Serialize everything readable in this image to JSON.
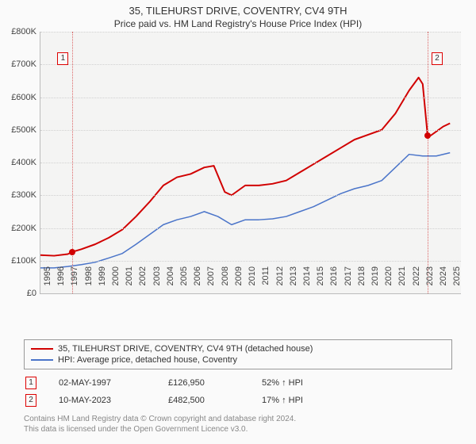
{
  "title": "35, TILEHURST DRIVE, COVENTRY, CV4 9TH",
  "subtitle": "Price paid vs. HM Land Registry's House Price Index (HPI)",
  "chart": {
    "type": "line",
    "background_color": "#f4f4f3",
    "grid_color": "#d0d0d0",
    "axis_color": "#bbbbbb",
    "xlim": [
      1995,
      2025.8
    ],
    "ylim": [
      0,
      800000
    ],
    "ytick_step": 100000,
    "yticks": [
      "£0",
      "£100K",
      "£200K",
      "£300K",
      "£400K",
      "£500K",
      "£600K",
      "£700K",
      "£800K"
    ],
    "xticks": [
      "1995",
      "1996",
      "1997",
      "1998",
      "1999",
      "2000",
      "2001",
      "2002",
      "2003",
      "2004",
      "2005",
      "2006",
      "2007",
      "2008",
      "2009",
      "2010",
      "2011",
      "2012",
      "2013",
      "2014",
      "2015",
      "2016",
      "2017",
      "2018",
      "2019",
      "2020",
      "2021",
      "2022",
      "2023",
      "2024",
      "2025"
    ],
    "label_fontsize": 11,
    "series": [
      {
        "name": "35, TILEHURST DRIVE, COVENTRY, CV4 9TH (detached house)",
        "color": "#d10000",
        "line_width": 2,
        "data": [
          [
            1995,
            117000
          ],
          [
            1996,
            115000
          ],
          [
            1997,
            120000
          ],
          [
            1997.35,
            126950
          ],
          [
            1998,
            135000
          ],
          [
            1999,
            150000
          ],
          [
            2000,
            170000
          ],
          [
            2001,
            195000
          ],
          [
            2002,
            235000
          ],
          [
            2003,
            280000
          ],
          [
            2004,
            330000
          ],
          [
            2005,
            355000
          ],
          [
            2006,
            365000
          ],
          [
            2007,
            385000
          ],
          [
            2007.7,
            390000
          ],
          [
            2008,
            360000
          ],
          [
            2008.5,
            310000
          ],
          [
            2009,
            300000
          ],
          [
            2010,
            330000
          ],
          [
            2011,
            330000
          ],
          [
            2012,
            335000
          ],
          [
            2013,
            345000
          ],
          [
            2014,
            370000
          ],
          [
            2015,
            395000
          ],
          [
            2016,
            420000
          ],
          [
            2017,
            445000
          ],
          [
            2018,
            470000
          ],
          [
            2019,
            485000
          ],
          [
            2020,
            500000
          ],
          [
            2021,
            550000
          ],
          [
            2022,
            620000
          ],
          [
            2022.7,
            660000
          ],
          [
            2023,
            640000
          ],
          [
            2023.36,
            482500
          ],
          [
            2023.5,
            480000
          ],
          [
            2024,
            495000
          ],
          [
            2024.5,
            510000
          ],
          [
            2025,
            520000
          ]
        ]
      },
      {
        "name": "HPI: Average price, detached house, Coventry",
        "color": "#4a74c9",
        "line_width": 1.5,
        "data": [
          [
            1995,
            78000
          ],
          [
            1996,
            78000
          ],
          [
            1997,
            82000
          ],
          [
            1998,
            88000
          ],
          [
            1999,
            95000
          ],
          [
            2000,
            108000
          ],
          [
            2001,
            122000
          ],
          [
            2002,
            150000
          ],
          [
            2003,
            180000
          ],
          [
            2004,
            210000
          ],
          [
            2005,
            225000
          ],
          [
            2006,
            235000
          ],
          [
            2007,
            250000
          ],
          [
            2008,
            235000
          ],
          [
            2009,
            210000
          ],
          [
            2010,
            225000
          ],
          [
            2011,
            225000
          ],
          [
            2012,
            228000
          ],
          [
            2013,
            235000
          ],
          [
            2014,
            250000
          ],
          [
            2015,
            265000
          ],
          [
            2016,
            285000
          ],
          [
            2017,
            305000
          ],
          [
            2018,
            320000
          ],
          [
            2019,
            330000
          ],
          [
            2020,
            345000
          ],
          [
            2021,
            385000
          ],
          [
            2022,
            425000
          ],
          [
            2023,
            420000
          ],
          [
            2024,
            420000
          ],
          [
            2025,
            430000
          ]
        ]
      }
    ],
    "markers": [
      {
        "n": "1",
        "x": 1997.35,
        "y": 126950,
        "color": "#d10000"
      },
      {
        "n": "2",
        "x": 2023.36,
        "y": 482500,
        "color": "#d10000"
      }
    ]
  },
  "legend": [
    {
      "label": "35, TILEHURST DRIVE, COVENTRY, CV4 9TH (detached house)",
      "color": "#d10000"
    },
    {
      "label": "HPI: Average price, detached house, Coventry",
      "color": "#4a74c9"
    }
  ],
  "events": [
    {
      "n": "1",
      "date": "02-MAY-1997",
      "price": "£126,950",
      "pct": "52% ↑ HPI"
    },
    {
      "n": "2",
      "date": "10-MAY-2023",
      "price": "£482,500",
      "pct": "17% ↑ HPI"
    }
  ],
  "copyright_l1": "Contains HM Land Registry data © Crown copyright and database right 2024.",
  "copyright_l2": "This data is licensed under the Open Government Licence v3.0."
}
